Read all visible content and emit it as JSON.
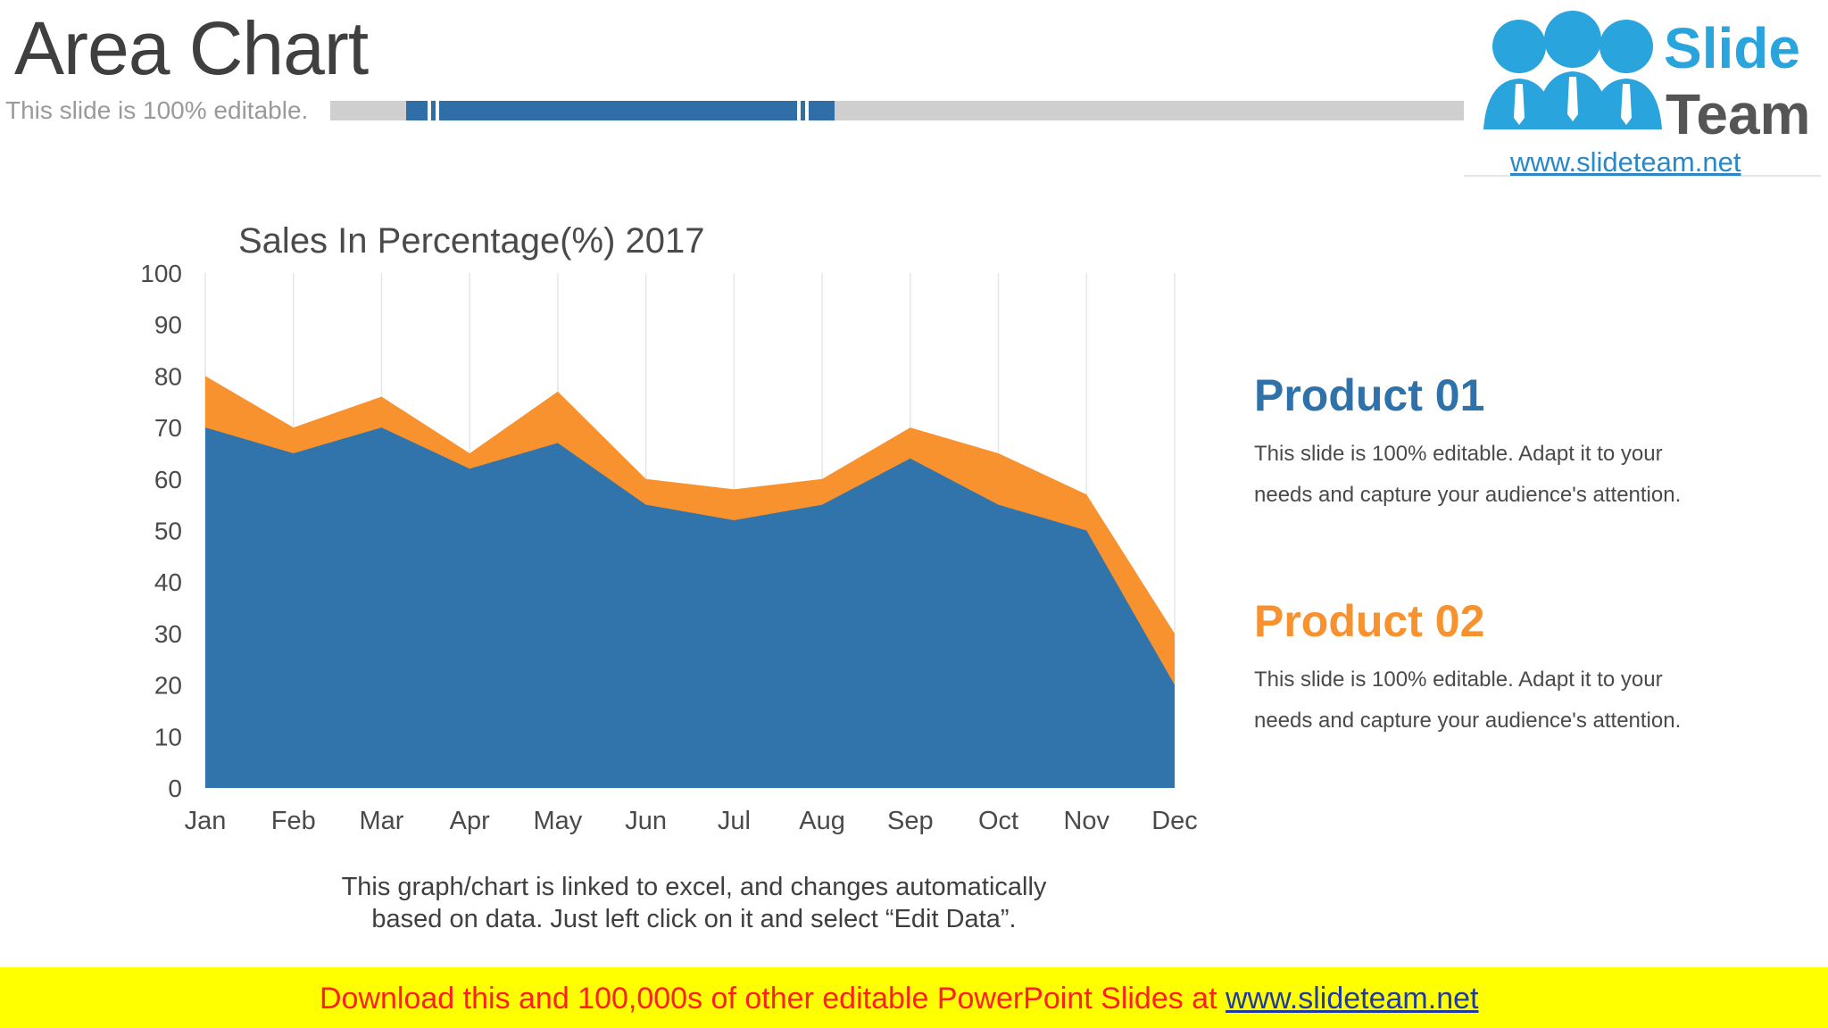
{
  "slide": {
    "title": "Area Chart",
    "subtitle": "This slide is 100% editable.",
    "note_line1": "This graph/chart is linked to excel, and changes automatically",
    "note_line2": "based on data. Just left click on it and select “Edit Data”."
  },
  "logo": {
    "word1": "Slide",
    "word2": "Team",
    "url": "www.slideteam.net"
  },
  "products": [
    {
      "title": "Product 01",
      "line1": "This slide is 100% editable. Adapt it to your",
      "line2": "needs and capture your audience's attention.",
      "color": "#2f72aa"
    },
    {
      "title": "Product 02",
      "line1": "This slide is 100% editable. Adapt it to your",
      "line2": "needs and capture your audience's attention.",
      "color": "#f7922f"
    }
  ],
  "footer": {
    "text": "Download this and 100,000s of other editable PowerPoint Slides at ",
    "link": "www.slideteam.net"
  },
  "chart_data": {
    "type": "area",
    "title": "Sales In Percentage(%) 2017",
    "categories": [
      "Jan",
      "Feb",
      "Mar",
      "Apr",
      "May",
      "Jun",
      "Jul",
      "Aug",
      "Sep",
      "Oct",
      "Nov",
      "Dec"
    ],
    "series": [
      {
        "name": "Product 02",
        "color": "#f7922f",
        "values": [
          80,
          70,
          76,
          65,
          77,
          60,
          58,
          60,
          70,
          65,
          57,
          30
        ]
      },
      {
        "name": "Product 01",
        "color": "#3174ab",
        "values": [
          70,
          65,
          70,
          62,
          67,
          55,
          52,
          55,
          64,
          55,
          50,
          20
        ]
      }
    ],
    "ylim": [
      0,
      100
    ],
    "yticks": [
      0,
      10,
      20,
      30,
      40,
      50,
      60,
      70,
      80,
      90,
      100
    ],
    "grid": "vertical",
    "legend": "none"
  }
}
